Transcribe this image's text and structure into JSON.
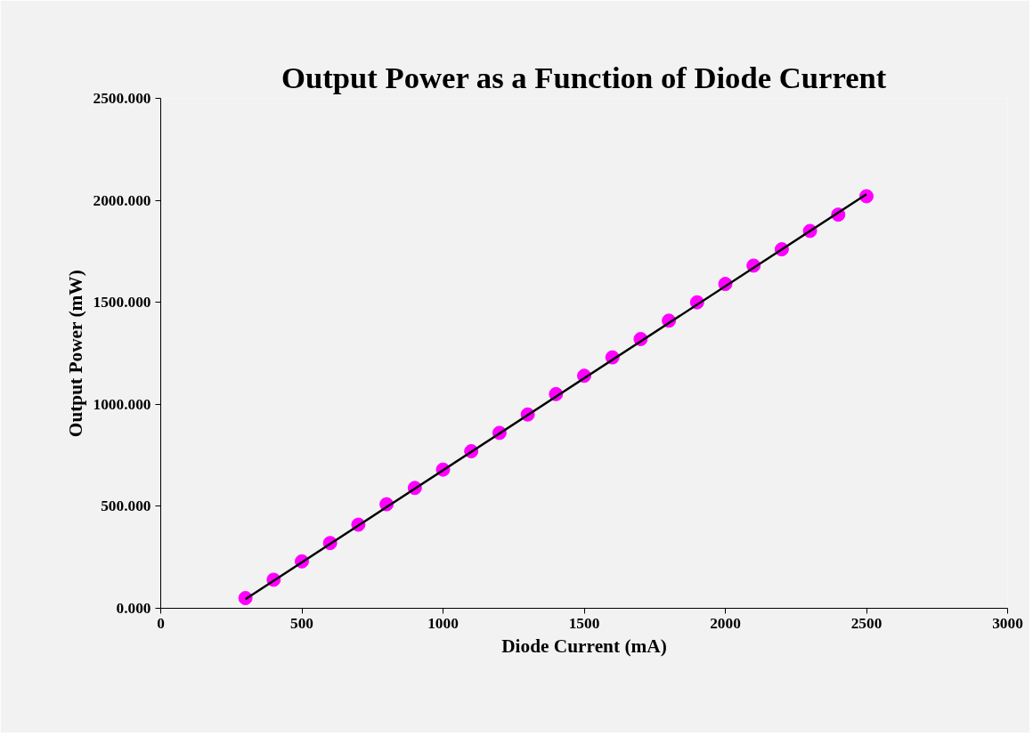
{
  "chart_data": {
    "type": "scatter",
    "title": "Output Power as a Function of Diode Current",
    "xlabel": "Diode Current (mA)",
    "ylabel": "Output Power (mW)",
    "xlim": [
      0,
      3000
    ],
    "xticks": [
      0,
      500,
      1000,
      1500,
      2000,
      2500,
      3000
    ],
    "ylim": [
      0,
      2500
    ],
    "yticks": [
      {
        "value": 0,
        "label": "0.000"
      },
      {
        "value": 500,
        "label": "500.000"
      },
      {
        "value": 1000,
        "label": "1000.000"
      },
      {
        "value": 1500,
        "label": "1500.000"
      },
      {
        "value": 2000,
        "label": "2000.000"
      },
      {
        "value": 2500,
        "label": "2500.000"
      }
    ],
    "marker": "circle",
    "series": [
      {
        "color": "#ff00ff",
        "x": [
          300,
          400,
          500,
          600,
          700,
          800,
          900,
          1000,
          1100,
          1200,
          1300,
          1400,
          1500,
          1600,
          1700,
          1800,
          1900,
          2000,
          2100,
          2200,
          2300,
          2400,
          2500
        ],
        "values": [
          50,
          140,
          230,
          320,
          410,
          510,
          590,
          680,
          770,
          860,
          950,
          1050,
          1140,
          1230,
          1320,
          1410,
          1500,
          1590,
          1680,
          1760,
          1850,
          1930,
          2020
        ]
      },
      {
        "type": "line",
        "color": "#000000",
        "marker": "none",
        "line_style": "solid",
        "x": [
          300,
          2500
        ],
        "values": [
          45,
          2030
        ]
      }
    ]
  }
}
